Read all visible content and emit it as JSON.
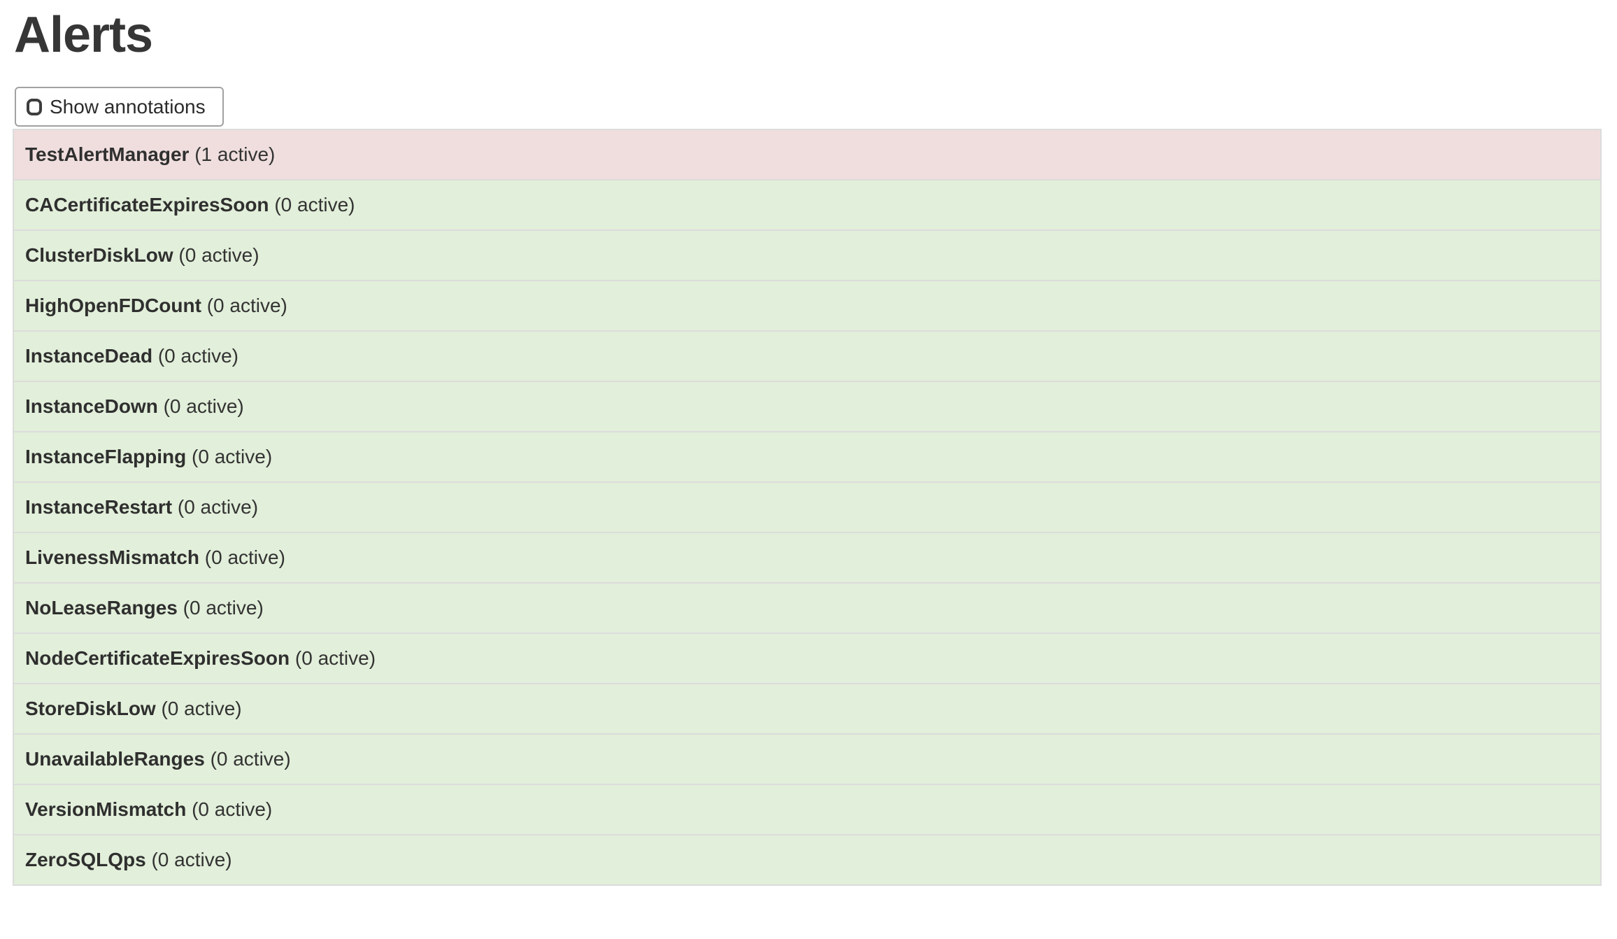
{
  "page": {
    "title": "Alerts"
  },
  "controls": {
    "show_annotations": {
      "label": "Show annotations",
      "checked": false
    }
  },
  "alerts": {
    "rows": [
      {
        "name": "TestAlertManager",
        "count_label": "(1 active)",
        "state": "firing"
      },
      {
        "name": "CACertificateExpiresSoon",
        "count_label": "(0 active)",
        "state": "inactive"
      },
      {
        "name": "ClusterDiskLow",
        "count_label": "(0 active)",
        "state": "inactive"
      },
      {
        "name": "HighOpenFDCount",
        "count_label": "(0 active)",
        "state": "inactive"
      },
      {
        "name": "InstanceDead",
        "count_label": "(0 active)",
        "state": "inactive"
      },
      {
        "name": "InstanceDown",
        "count_label": "(0 active)",
        "state": "inactive"
      },
      {
        "name": "InstanceFlapping",
        "count_label": "(0 active)",
        "state": "inactive"
      },
      {
        "name": "InstanceRestart",
        "count_label": "(0 active)",
        "state": "inactive"
      },
      {
        "name": "LivenessMismatch",
        "count_label": "(0 active)",
        "state": "inactive"
      },
      {
        "name": "NoLeaseRanges",
        "count_label": "(0 active)",
        "state": "inactive"
      },
      {
        "name": "NodeCertificateExpiresSoon",
        "count_label": "(0 active)",
        "state": "inactive"
      },
      {
        "name": "StoreDiskLow",
        "count_label": "(0 active)",
        "state": "inactive"
      },
      {
        "name": "UnavailableRanges",
        "count_label": "(0 active)",
        "state": "inactive"
      },
      {
        "name": "VersionMismatch",
        "count_label": "(0 active)",
        "state": "inactive"
      },
      {
        "name": "ZeroSQLQps",
        "count_label": "(0 active)",
        "state": "inactive"
      }
    ]
  },
  "colors": {
    "firing_row_bg": "#f0dede",
    "inactive_row_bg": "#e2efda",
    "table_border": "#dcdcdc"
  }
}
